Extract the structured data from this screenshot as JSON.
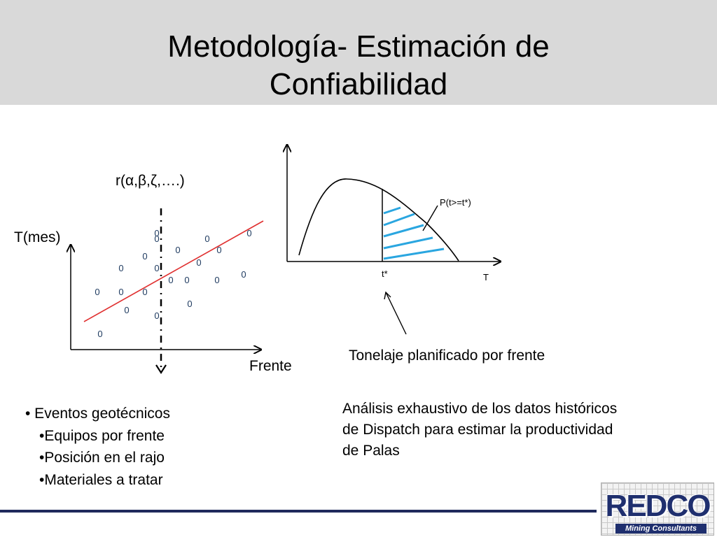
{
  "slide": {
    "title_line1": "Metodología- Estimación de",
    "title_line2": "Confiabilidad"
  },
  "left_diagram": {
    "regression_label": "r(α,β,ζ,….)",
    "y_axis_label": "T(mes)",
    "x_axis_label": "Frente",
    "point_marker": "0",
    "points_count": 23,
    "trend_line_color": "#e03030"
  },
  "right_diagram": {
    "probability_label": "P(t>=t*)",
    "threshold_label": "t*",
    "x_axis_label": "T",
    "hatch_color": "#2aa6e0",
    "threshold_annotation": "Tonelaje planificado por frente"
  },
  "analysis": {
    "line1": "Análisis exhaustivo de los datos históricos",
    "line2": "de Dispatch para estimar la productividad",
    "line3": "de Palas"
  },
  "bullets": {
    "main": "•  Eventos geotécnicos",
    "sub1": "•Equipos por frente",
    "sub2": "•Posición en el rajo",
    "sub3": "•Materiales a tratar"
  },
  "logo": {
    "name": "REDCO",
    "tagline": "Mining Consultants",
    "brand_color": "#1f2f6e"
  }
}
